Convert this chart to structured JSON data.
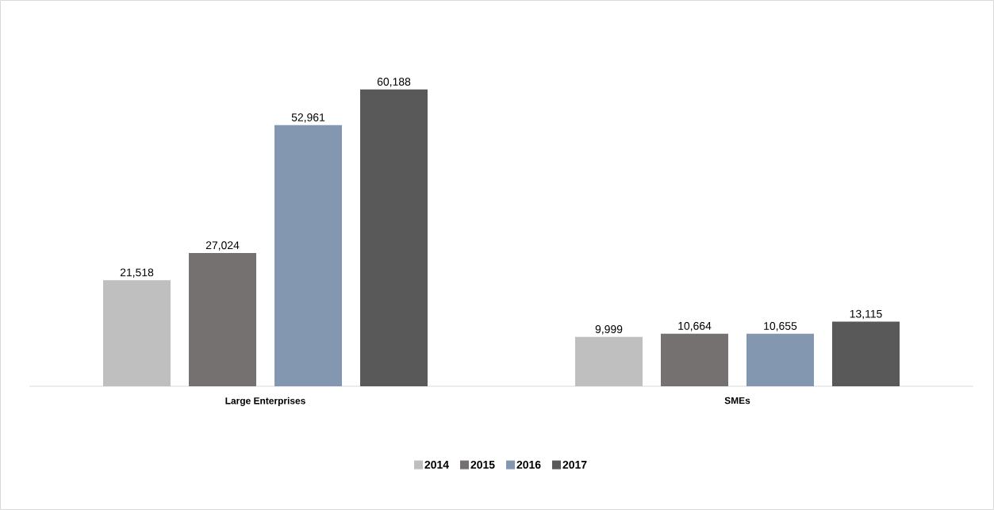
{
  "chart_data": {
    "type": "bar",
    "categories": [
      "Large Enterprises",
      "SMEs"
    ],
    "series": [
      {
        "name": "2014",
        "color": "#bfbfbf",
        "values": [
          21518,
          9999
        ],
        "value_labels": [
          "21,518",
          "9,999"
        ]
      },
      {
        "name": "2015",
        "color": "#767171",
        "values": [
          27024,
          10664
        ],
        "value_labels": [
          "27,024",
          "10,664"
        ]
      },
      {
        "name": "2016",
        "color": "#8497b0",
        "values": [
          52961,
          10655
        ],
        "value_labels": [
          "52,961",
          "10,655"
        ]
      },
      {
        "name": "2017",
        "color": "#595959",
        "values": [
          60188,
          13115
        ],
        "value_labels": [
          "60,188",
          "13,115"
        ]
      }
    ],
    "legend": "bottom"
  }
}
